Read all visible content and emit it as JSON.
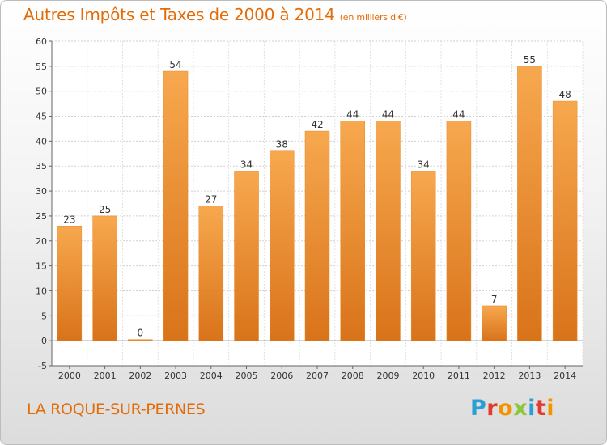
{
  "header": {
    "title": "Autres Impôts et Taxes de 2000 à 2014",
    "unit": "(en milliers d'€)"
  },
  "footer": {
    "town": "LA ROQUE-SUR-PERNES",
    "logo": "Proxiti",
    "logo_colors": [
      "#2a9fd6",
      "#e23b2e",
      "#f29400",
      "#8dc63f",
      "#2a9fd6",
      "#e23b2e",
      "#f29400"
    ]
  },
  "chart_data": {
    "type": "bar",
    "categories": [
      "2000",
      "2001",
      "2002",
      "2003",
      "2004",
      "2005",
      "2006",
      "2007",
      "2008",
      "2009",
      "2010",
      "2011",
      "2012",
      "2013",
      "2014"
    ],
    "values": [
      23,
      25,
      0,
      54,
      27,
      34,
      38,
      42,
      44,
      44,
      34,
      44,
      7,
      55,
      48
    ],
    "ylim": [
      -5,
      60
    ],
    "yticks": [
      -5,
      0,
      5,
      10,
      15,
      20,
      25,
      30,
      35,
      40,
      45,
      50,
      55,
      60
    ],
    "grid": true,
    "bar_color": "#f39c42",
    "bar_color_dark": "#d9731a"
  }
}
